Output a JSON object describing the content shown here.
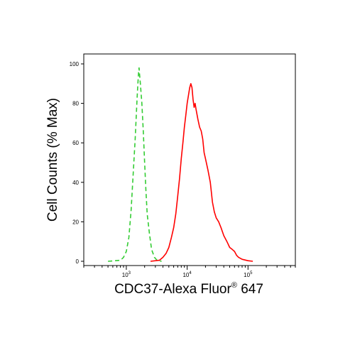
{
  "chart_data": {
    "type": "line",
    "title": "",
    "xlabel": "CDC37-Alexa Fluor",
    "xlabel_sup": "®",
    "xlabel_suffix": " 647",
    "ylabel": "Cell Counts (% Max)",
    "x_scale": "log",
    "xlim": [
      200,
      600000
    ],
    "ylim": [
      0,
      100
    ],
    "x_tick_labels": [
      {
        "value": 1000,
        "base": "10",
        "exp": "3"
      },
      {
        "value": 10000,
        "base": "10",
        "exp": "4"
      },
      {
        "value": 100000,
        "base": "10",
        "exp": "5"
      }
    ],
    "y_ticks": [
      0,
      20,
      40,
      60,
      80,
      100
    ],
    "grid": false,
    "legend": "none",
    "series": [
      {
        "color": "#33cc33",
        "style": "dashed",
        "points": [
          [
            500,
            0
          ],
          [
            800,
            0.5
          ],
          [
            900,
            2
          ],
          [
            1000,
            5
          ],
          [
            1100,
            12
          ],
          [
            1200,
            26
          ],
          [
            1300,
            45
          ],
          [
            1400,
            62
          ],
          [
            1500,
            82
          ],
          [
            1550,
            90
          ],
          [
            1600,
            97
          ],
          [
            1620,
            98
          ],
          [
            1650,
            95
          ],
          [
            1700,
            90
          ],
          [
            1800,
            80
          ],
          [
            1900,
            66
          ],
          [
            2000,
            50
          ],
          [
            2100,
            36
          ],
          [
            2200,
            24
          ],
          [
            2400,
            14
          ],
          [
            2600,
            6
          ],
          [
            2900,
            2
          ],
          [
            3200,
            0.5
          ],
          [
            3800,
            0
          ]
        ]
      },
      {
        "color": "#ff0000",
        "style": "solid",
        "points": [
          [
            2500,
            0
          ],
          [
            3500,
            0.5
          ],
          [
            4000,
            2
          ],
          [
            4500,
            4
          ],
          [
            5000,
            7
          ],
          [
            5500,
            12
          ],
          [
            6000,
            17
          ],
          [
            6500,
            24
          ],
          [
            7000,
            33
          ],
          [
            7500,
            42
          ],
          [
            8000,
            52
          ],
          [
            8500,
            60
          ],
          [
            9000,
            68
          ],
          [
            9500,
            74
          ],
          [
            10000,
            80
          ],
          [
            10500,
            84
          ],
          [
            11000,
            88
          ],
          [
            11500,
            90
          ],
          [
            12000,
            88
          ],
          [
            12500,
            82
          ],
          [
            13000,
            78
          ],
          [
            13500,
            80
          ],
          [
            14000,
            77
          ],
          [
            15000,
            72
          ],
          [
            16000,
            68
          ],
          [
            17000,
            66
          ],
          [
            18000,
            62
          ],
          [
            19000,
            55
          ],
          [
            20000,
            52
          ],
          [
            22000,
            46
          ],
          [
            24000,
            40
          ],
          [
            26000,
            30
          ],
          [
            28000,
            25
          ],
          [
            30000,
            22
          ],
          [
            33000,
            20
          ],
          [
            36000,
            17
          ],
          [
            40000,
            13
          ],
          [
            45000,
            10
          ],
          [
            50000,
            7
          ],
          [
            55000,
            6
          ],
          [
            60000,
            5
          ],
          [
            65000,
            3
          ],
          [
            70000,
            2
          ],
          [
            80000,
            1
          ],
          [
            100000,
            0.3
          ],
          [
            120000,
            0
          ]
        ]
      }
    ]
  }
}
